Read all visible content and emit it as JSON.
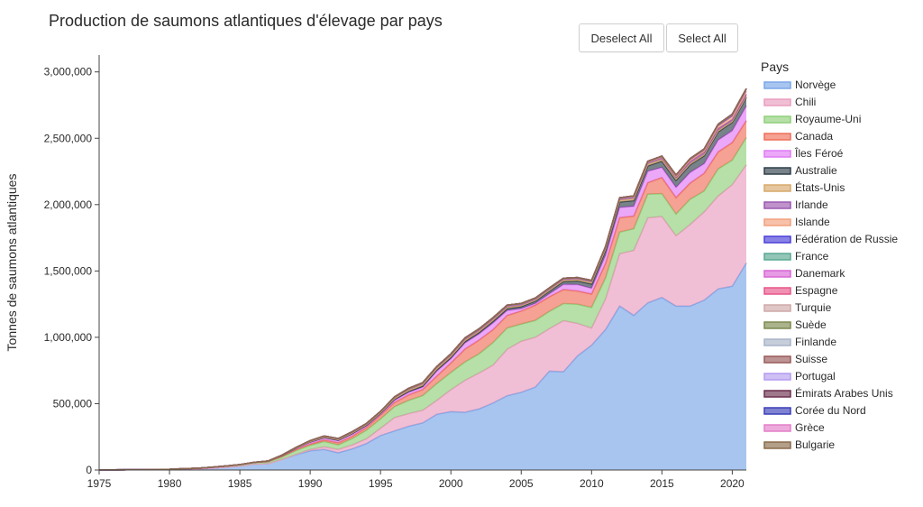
{
  "title": "Production de saumons atlantiques d'élevage par pays",
  "buttons": {
    "deselect_all": "Deselect All",
    "select_all": "Select All"
  },
  "chart_data": {
    "type": "area",
    "stacked": true,
    "title": "Production de saumons atlantiques d'élevage par pays",
    "xlabel": "",
    "ylabel": "Tonnes de saumons atlantiques",
    "xlim": [
      1975,
      2021
    ],
    "ylim": [
      0,
      3100000
    ],
    "x_ticks": [
      1975,
      1980,
      1985,
      1990,
      1995,
      2000,
      2005,
      2010,
      2015,
      2020
    ],
    "y_ticks": [
      0,
      500000,
      1000000,
      1500000,
      2000000,
      2500000,
      3000000
    ],
    "y_tick_labels": [
      "0",
      "500,000",
      "1,000,000",
      "1,500,000",
      "2,000,000",
      "2,500,000",
      "3,000,000"
    ],
    "grid": false,
    "legend_title": "Pays",
    "legend_position": "right",
    "x": [
      1975,
      1976,
      1977,
      1978,
      1979,
      1980,
      1981,
      1982,
      1983,
      1984,
      1985,
      1986,
      1987,
      1988,
      1989,
      1990,
      1991,
      1992,
      1993,
      1994,
      1995,
      1996,
      1997,
      1998,
      1999,
      2000,
      2001,
      2002,
      2003,
      2004,
      2005,
      2006,
      2007,
      2008,
      2009,
      2010,
      2011,
      2012,
      2013,
      2014,
      2015,
      2016,
      2017,
      2018,
      2019,
      2020,
      2021
    ],
    "series": [
      {
        "name": "Norvège",
        "color": "#7aa6e8",
        "values": [
          1000,
          1500,
          2000,
          2500,
          3500,
          4500,
          7500,
          9000,
          15000,
          22000,
          30000,
          45000,
          48000,
          80000,
          115000,
          145000,
          155000,
          130000,
          160000,
          200000,
          260000,
          295000,
          330000,
          355000,
          420000,
          440000,
          435000,
          460000,
          505000,
          560000,
          585000,
          625000,
          745000,
          740000,
          860000,
          940000,
          1060000,
          1235000,
          1165000,
          1260000,
          1300000,
          1235000,
          1235000,
          1280000,
          1365000,
          1385000,
          1560000
        ]
      },
      {
        "name": "Chili",
        "color": "#ea9dbf",
        "values": [
          0,
          0,
          0,
          0,
          0,
          0,
          0,
          0,
          0,
          0,
          0,
          0,
          0,
          0,
          3000,
          9000,
          20000,
          24000,
          30000,
          35000,
          55000,
          100000,
          95000,
          95000,
          105000,
          165000,
          240000,
          270000,
          285000,
          350000,
          385000,
          375000,
          320000,
          385000,
          245000,
          130000,
          230000,
          395000,
          490000,
          640000,
          610000,
          530000,
          615000,
          665000,
          700000,
          765000,
          740000
        ]
      },
      {
        "name": "Royaume-Uni",
        "color": "#8fcf7a",
        "values": [
          0,
          0,
          0,
          0,
          500,
          1000,
          3000,
          4000,
          6000,
          8000,
          10000,
          12000,
          13000,
          18000,
          29000,
          32000,
          40000,
          36000,
          48000,
          65000,
          70000,
          83000,
          99000,
          111000,
          126000,
          129000,
          139000,
          145000,
          170000,
          160000,
          130000,
          127000,
          130000,
          129000,
          144000,
          155000,
          159000,
          162000,
          163000,
          179000,
          172000,
          164000,
          190000,
          157000,
          204000,
          185000,
          205000
        ]
      },
      {
        "name": "Canada",
        "color": "#ef6f59",
        "values": [
          0,
          0,
          0,
          0,
          0,
          0,
          0,
          0,
          0,
          0,
          0,
          0,
          2000,
          5000,
          7000,
          10000,
          12000,
          15000,
          18000,
          20000,
          28000,
          32000,
          42000,
          46000,
          57000,
          72000,
          97000,
          104000,
          98000,
          95000,
          98000,
          115000,
          111000,
          106000,
          100000,
          101000,
          110000,
          110000,
          96000,
          86000,
          122000,
          124000,
          122000,
          134000,
          129000,
          133000,
          128000
        ]
      },
      {
        "name": "Îles Féroé",
        "color": "#e07af5",
        "values": [
          0,
          0,
          0,
          0,
          0,
          0,
          0,
          0,
          0,
          0,
          500,
          1000,
          3000,
          6000,
          8000,
          13000,
          15000,
          17000,
          16000,
          14000,
          9000,
          16000,
          19000,
          18000,
          37000,
          32000,
          46000,
          46000,
          50000,
          37000,
          18000,
          13000,
          22000,
          38000,
          48000,
          43000,
          60000,
          76000,
          73000,
          86000,
          76000,
          77000,
          80000,
          72000,
          89000,
          89000,
          110000
        ]
      },
      {
        "name": "Australie",
        "color": "#2f3f4a",
        "values": [
          0,
          0,
          0,
          0,
          0,
          0,
          0,
          0,
          0,
          0,
          0,
          0,
          0,
          0,
          2000,
          3000,
          3000,
          3000,
          4000,
          4000,
          5000,
          7000,
          8000,
          8000,
          9000,
          10000,
          11000,
          12000,
          14000,
          15000,
          16000,
          18000,
          20000,
          23000,
          28000,
          33000,
          38000,
          42000,
          43000,
          41000,
          48000,
          53000,
          58000,
          60000,
          62000,
          63000,
          65000
        ]
      },
      {
        "name": "États-Unis",
        "color": "#d7a86b",
        "values": [
          0,
          0,
          0,
          0,
          0,
          0,
          0,
          0,
          0,
          0,
          0,
          0,
          0,
          1000,
          2000,
          3000,
          4000,
          5000,
          5000,
          5000,
          6000,
          8000,
          10000,
          12000,
          12000,
          12000,
          11000,
          10000,
          10000,
          9000,
          8000,
          8000,
          9000,
          10000,
          11000,
          12000,
          13000,
          14000,
          15000,
          14000,
          13000,
          12000,
          10000,
          10000,
          10000,
          9000,
          9000
        ]
      },
      {
        "name": "Irlande",
        "color": "#9c57b1",
        "values": [
          0,
          0,
          0,
          0,
          0,
          0,
          0,
          0,
          0,
          0,
          0,
          0,
          1000,
          2000,
          3000,
          4000,
          5000,
          5000,
          6000,
          6000,
          7000,
          8000,
          10000,
          11000,
          12000,
          12000,
          13000,
          13000,
          13000,
          13000,
          12000,
          12000,
          12000,
          11000,
          11000,
          12000,
          13000,
          13000,
          13000,
          12000,
          13000,
          14000,
          15000,
          16000,
          15000,
          13000,
          15000
        ]
      },
      {
        "name": "Islande",
        "color": "#f2a07c",
        "values": [
          0,
          0,
          0,
          0,
          0,
          0,
          0,
          0,
          0,
          0,
          0,
          0,
          0,
          500,
          1000,
          2000,
          2000,
          2000,
          2000,
          2000,
          2000,
          2000,
          2000,
          2000,
          2000,
          3000,
          3000,
          3000,
          3000,
          3000,
          3000,
          3000,
          3000,
          3000,
          3000,
          3000,
          3000,
          3000,
          4000,
          4000,
          5000,
          6000,
          11000,
          13000,
          18000,
          22000,
          23000
        ]
      },
      {
        "name": "Fédération de Russie",
        "color": "#4a3fd8",
        "values": [
          0,
          0,
          0,
          0,
          0,
          0,
          0,
          0,
          0,
          0,
          0,
          0,
          0,
          0,
          0,
          0,
          0,
          0,
          0,
          0,
          0,
          0,
          0,
          0,
          0,
          0,
          0,
          0,
          0,
          0,
          0,
          0,
          0,
          0,
          0,
          0,
          0,
          2000,
          3000,
          5000,
          6000,
          8000,
          10000,
          12000,
          14000,
          17000,
          19000
        ]
      },
      {
        "name": "France",
        "color": "#5aa892",
        "values": [
          0,
          0,
          0,
          0,
          0,
          0,
          0,
          0,
          0,
          0,
          0,
          0,
          0,
          0,
          0,
          0,
          0,
          0,
          0,
          0,
          0,
          0,
          0,
          0,
          0,
          0,
          0,
          0,
          0,
          0,
          0,
          0,
          0,
          0,
          0,
          0,
          0,
          0,
          0,
          0,
          0,
          0,
          0,
          0,
          0,
          0,
          0
        ]
      },
      {
        "name": "Danemark",
        "color": "#d966d6",
        "values": [
          0,
          0,
          0,
          0,
          0,
          0,
          0,
          0,
          0,
          0,
          0,
          0,
          0,
          0,
          0,
          0,
          0,
          0,
          0,
          0,
          0,
          0,
          0,
          0,
          0,
          0,
          0,
          0,
          0,
          0,
          0,
          0,
          0,
          0,
          0,
          0,
          0,
          0,
          0,
          0,
          0,
          0,
          0,
          0,
          0,
          0,
          0
        ]
      },
      {
        "name": "Espagne",
        "color": "#e8558a",
        "values": [
          0,
          0,
          0,
          0,
          0,
          0,
          0,
          0,
          0,
          0,
          0,
          0,
          0,
          0,
          0,
          0,
          0,
          0,
          0,
          0,
          0,
          0,
          0,
          0,
          0,
          0,
          0,
          0,
          0,
          0,
          0,
          0,
          0,
          0,
          0,
          0,
          0,
          0,
          0,
          0,
          0,
          0,
          0,
          0,
          0,
          0,
          0
        ]
      },
      {
        "name": "Turquie",
        "color": "#cfa9a9",
        "values": [
          0,
          0,
          0,
          0,
          0,
          0,
          0,
          0,
          0,
          0,
          0,
          0,
          0,
          0,
          0,
          0,
          0,
          0,
          0,
          0,
          0,
          0,
          0,
          0,
          0,
          0,
          0,
          0,
          0,
          0,
          0,
          0,
          0,
          0,
          0,
          0,
          0,
          0,
          0,
          0,
          0,
          0,
          0,
          0,
          0,
          0,
          0
        ]
      },
      {
        "name": "Suède",
        "color": "#7d8a4f",
        "values": [
          0,
          0,
          0,
          0,
          0,
          0,
          0,
          0,
          0,
          0,
          0,
          0,
          0,
          0,
          0,
          0,
          0,
          0,
          0,
          0,
          0,
          0,
          0,
          0,
          0,
          0,
          0,
          0,
          0,
          0,
          0,
          0,
          0,
          0,
          0,
          0,
          0,
          0,
          0,
          0,
          0,
          0,
          0,
          0,
          0,
          0,
          0
        ]
      },
      {
        "name": "Finlande",
        "color": "#a9b4c8",
        "values": [
          0,
          0,
          0,
          0,
          0,
          0,
          0,
          0,
          0,
          0,
          0,
          0,
          0,
          0,
          0,
          0,
          0,
          0,
          0,
          0,
          0,
          0,
          0,
          0,
          0,
          0,
          0,
          0,
          0,
          0,
          0,
          0,
          0,
          0,
          0,
          0,
          0,
          0,
          0,
          0,
          0,
          0,
          0,
          0,
          0,
          0,
          0
        ]
      },
      {
        "name": "Suisse",
        "color": "#9a5a5a",
        "values": [
          0,
          0,
          0,
          0,
          0,
          0,
          0,
          0,
          0,
          0,
          0,
          0,
          0,
          0,
          0,
          0,
          0,
          0,
          0,
          0,
          0,
          0,
          0,
          0,
          0,
          0,
          0,
          0,
          0,
          0,
          0,
          0,
          0,
          0,
          0,
          0,
          0,
          0,
          0,
          0,
          0,
          0,
          0,
          0,
          0,
          0,
          0
        ]
      },
      {
        "name": "Portugal",
        "color": "#b49cf0",
        "values": [
          0,
          0,
          0,
          0,
          0,
          0,
          0,
          0,
          0,
          0,
          0,
          0,
          0,
          0,
          0,
          0,
          0,
          0,
          0,
          0,
          0,
          0,
          0,
          0,
          0,
          0,
          0,
          0,
          0,
          0,
          0,
          0,
          0,
          0,
          0,
          0,
          0,
          0,
          0,
          0,
          0,
          0,
          0,
          0,
          0,
          0,
          0
        ]
      },
      {
        "name": "Émirats Arabes Unis",
        "color": "#6b2f4f",
        "values": [
          0,
          0,
          0,
          0,
          0,
          0,
          0,
          0,
          0,
          0,
          0,
          0,
          0,
          0,
          0,
          0,
          0,
          0,
          0,
          0,
          0,
          0,
          0,
          0,
          0,
          0,
          0,
          0,
          0,
          0,
          0,
          0,
          0,
          0,
          0,
          0,
          0,
          0,
          0,
          0,
          0,
          0,
          0,
          0,
          0,
          0,
          0
        ]
      },
      {
        "name": "Corée du Nord",
        "color": "#3b3fb8",
        "values": [
          0,
          0,
          0,
          0,
          0,
          0,
          0,
          0,
          0,
          0,
          0,
          0,
          0,
          0,
          0,
          0,
          0,
          0,
          0,
          0,
          0,
          0,
          0,
          0,
          0,
          0,
          0,
          0,
          0,
          0,
          0,
          0,
          0,
          0,
          0,
          0,
          0,
          0,
          0,
          0,
          0,
          0,
          0,
          0,
          0,
          0,
          0
        ]
      },
      {
        "name": "Grèce",
        "color": "#e37ec9",
        "values": [
          0,
          0,
          0,
          0,
          0,
          0,
          0,
          0,
          0,
          0,
          0,
          0,
          0,
          0,
          0,
          0,
          0,
          0,
          0,
          0,
          0,
          0,
          0,
          0,
          0,
          0,
          0,
          0,
          0,
          0,
          0,
          0,
          0,
          0,
          0,
          0,
          0,
          0,
          0,
          0,
          0,
          0,
          0,
          0,
          0,
          0,
          0
        ]
      },
      {
        "name": "Bulgarie",
        "color": "#8a6a4a",
        "values": [
          0,
          0,
          0,
          0,
          0,
          0,
          0,
          0,
          0,
          0,
          0,
          0,
          0,
          0,
          0,
          0,
          0,
          0,
          0,
          0,
          0,
          0,
          0,
          0,
          0,
          0,
          0,
          0,
          0,
          0,
          0,
          0,
          0,
          0,
          0,
          0,
          0,
          0,
          0,
          0,
          0,
          0,
          0,
          0,
          0,
          0,
          0
        ]
      }
    ]
  }
}
